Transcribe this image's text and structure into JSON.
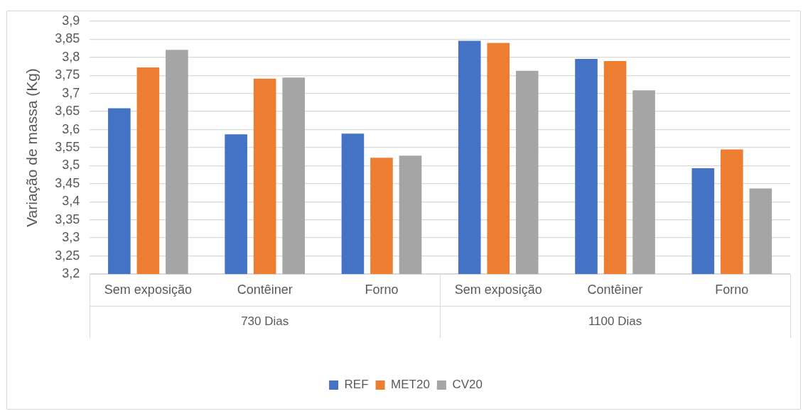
{
  "chart_data": {
    "type": "bar",
    "ylabel": "Variação de massa (Kg)",
    "categories": [
      "Sem exposição",
      "Contêiner",
      "Forno",
      "Sem exposição",
      "Contêiner",
      "Forno"
    ],
    "annotations": [
      "730 Dias",
      "1100 Dias"
    ],
    "series": [
      {
        "name": "REF",
        "color": "#4472c4",
        "values": [
          3.659,
          3.587,
          3.589,
          3.846,
          3.796,
          3.493
        ]
      },
      {
        "name": "MET20",
        "color": "#ed7d31",
        "values": [
          3.772,
          3.741,
          3.522,
          3.84,
          3.79,
          3.545
        ]
      },
      {
        "name": "CV20",
        "color": "#a5a5a5",
        "values": [
          3.821,
          3.744,
          3.528,
          3.763,
          3.709,
          3.437
        ]
      }
    ],
    "ylim": [
      3.2,
      3.9
    ],
    "yticks": [
      {
        "value": 3.2,
        "label": "3,2"
      },
      {
        "value": 3.25,
        "label": "3,25"
      },
      {
        "value": 3.3,
        "label": "3,3"
      },
      {
        "value": 3.35,
        "label": "3,35"
      },
      {
        "value": 3.4,
        "label": "3,4"
      },
      {
        "value": 3.45,
        "label": "3,45"
      },
      {
        "value": 3.5,
        "label": "3,5"
      },
      {
        "value": 3.55,
        "label": "3,55"
      },
      {
        "value": 3.6,
        "label": "3,6"
      },
      {
        "value": 3.65,
        "label": "3,65"
      },
      {
        "value": 3.7,
        "label": "3,7"
      },
      {
        "value": 3.75,
        "label": "3,75"
      },
      {
        "value": 3.8,
        "label": "3,8"
      },
      {
        "value": 3.85,
        "label": "3,85"
      },
      {
        "value": 3.9,
        "label": "3,9"
      }
    ],
    "grid": "y",
    "legend": "bottom"
  }
}
